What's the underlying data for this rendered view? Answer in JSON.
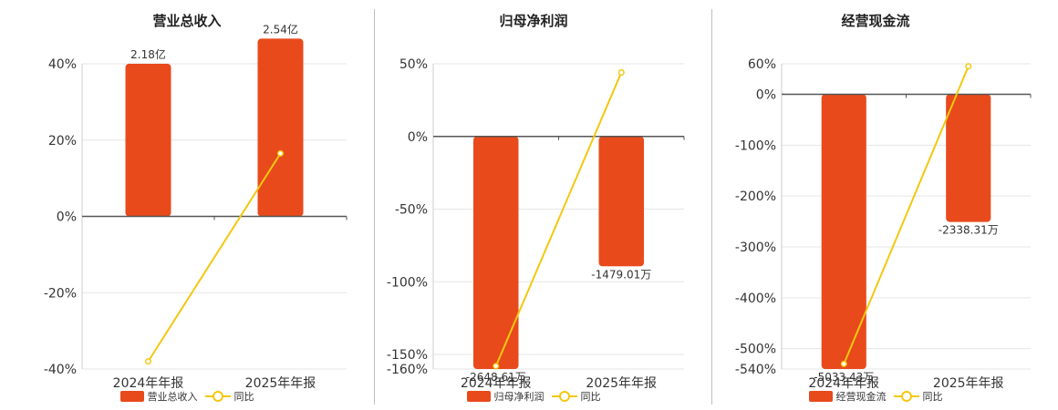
{
  "colors": {
    "bar": "#E84A1C",
    "line": "#F2C811",
    "grid": "#e6e6e6",
    "axis": "#555555",
    "text": "#333333"
  },
  "chart_data": [
    {
      "type": "bar",
      "title": "营业总收入",
      "categories": [
        "2024年年报",
        "2025年年报"
      ],
      "bar_ylim": [
        -2.18,
        2.18
      ],
      "line_ylim": [
        -40,
        40
      ],
      "yticks": [
        "40%",
        "20%",
        "0%",
        "-20%",
        "-40%"
      ],
      "series": [
        {
          "name": "营业总收入",
          "kind": "bar",
          "values": [
            2.18,
            2.54
          ],
          "labels": [
            "2.18亿",
            "2.54亿"
          ]
        },
        {
          "name": "同比",
          "kind": "line",
          "values": [
            -38.0,
            16.5
          ]
        }
      ],
      "legend": [
        "营业总收入",
        "同比"
      ]
    },
    {
      "type": "bar",
      "title": "归母净利润",
      "categories": [
        "2024年年报",
        "2025年年报"
      ],
      "bar_ylim": [
        -2648.61,
        827.7
      ],
      "line_ylim": [
        -160,
        50
      ],
      "yticks": [
        "50%",
        "0%",
        "-50%",
        "-100%",
        "-150%",
        "-160%"
      ],
      "ytick_values": [
        50,
        0,
        -50,
        -100,
        -150,
        -160
      ],
      "series": [
        {
          "name": "归母净利润",
          "kind": "bar",
          "values": [
            -2648.61,
            -1479.01
          ],
          "labels": [
            "-2648.61万",
            "-1479.01万"
          ]
        },
        {
          "name": "同比",
          "kind": "line",
          "values": [
            -158.0,
            44.0
          ]
        }
      ],
      "legend": [
        "归母净利润",
        "同比"
      ]
    },
    {
      "type": "bar",
      "title": "经营现金流",
      "categories": [
        "2024年年报",
        "2025年年报"
      ],
      "bar_ylim": [
        -5033.43,
        559.3
      ],
      "line_ylim": [
        -540,
        60
      ],
      "yticks": [
        "60%",
        "0%",
        "-100%",
        "-200%",
        "-300%",
        "-400%",
        "-500%",
        "-540%"
      ],
      "ytick_values": [
        60,
        0,
        -100,
        -200,
        -300,
        -400,
        -500,
        -540
      ],
      "series": [
        {
          "name": "经营现金流",
          "kind": "bar",
          "values": [
            -5033.43,
            -2338.31
          ],
          "labels": [
            "-5033.43万",
            "-2338.31万"
          ]
        },
        {
          "name": "同比",
          "kind": "line",
          "values": [
            -530.0,
            55.0
          ]
        }
      ],
      "legend": [
        "经营现金流",
        "同比"
      ]
    }
  ]
}
